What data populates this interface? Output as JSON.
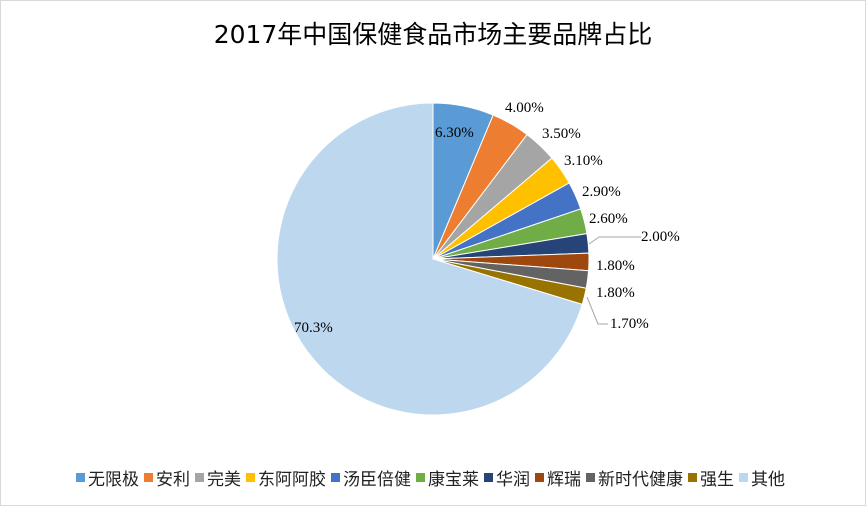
{
  "chart_data": {
    "type": "pie",
    "title": "2017年中国保健食品市场主要品牌占比",
    "categories": [
      "无限极",
      "安利",
      "完美",
      "东阿阿胶",
      "汤臣倍健",
      "康宝莱",
      "华润",
      "辉瑞",
      "新时代健康",
      "强生",
      "其他"
    ],
    "values": [
      6.3,
      4.0,
      3.5,
      3.1,
      2.9,
      2.6,
      2.0,
      1.8,
      1.8,
      1.7,
      70.3
    ],
    "labels": [
      "6.30%",
      "4.00%",
      "3.50%",
      "3.10%",
      "2.90%",
      "2.60%",
      "2.00%",
      "1.80%",
      "1.80%",
      "1.70%",
      "70.3%"
    ],
    "colors": [
      "#5b9bd5",
      "#ed7d31",
      "#a5a5a5",
      "#ffc000",
      "#4472c4",
      "#70ad47",
      "#264478",
      "#9e480e",
      "#636363",
      "#997300",
      "#bdd7ee"
    ],
    "start_angle_deg": 0,
    "direction": "clockwise",
    "legend_position": "bottom"
  }
}
